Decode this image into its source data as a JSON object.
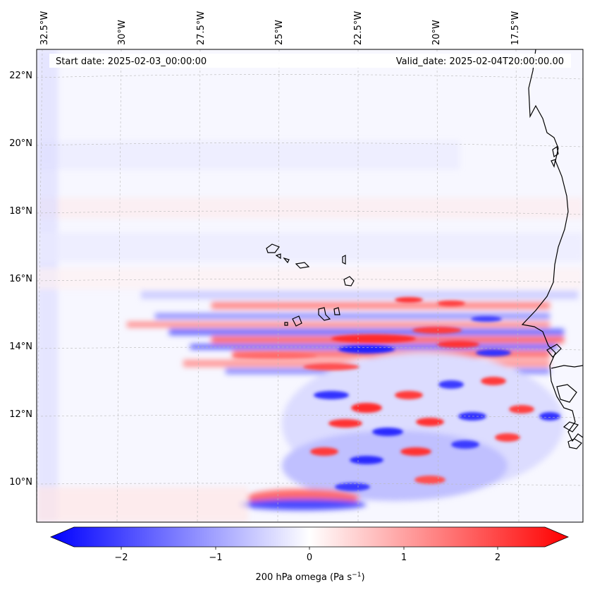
{
  "header": {
    "start_date": "Start date: 2025-02-03_00:00:00",
    "valid_date": "Valid_date: 2025-02-04T20:00:00.00"
  },
  "longitude_labels": [
    "32.5°W",
    "30°W",
    "27.5°W",
    "25°W",
    "22.5°W",
    "20°W",
    "17.5°W"
  ],
  "latitude_labels": [
    "22°N",
    "20°N",
    "18°N",
    "16°N",
    "14°N",
    "12°N",
    "10°N"
  ],
  "colorbar": {
    "tick_labels": [
      "−2",
      "−1",
      "0",
      "1",
      "2"
    ],
    "tick_values": [
      -2,
      -1,
      0,
      1,
      2
    ],
    "range": [
      -2.5,
      2.5
    ],
    "label": "200 hPa omega (Pa s",
    "label_sup": "−1",
    "label_close": ")",
    "colors": {
      "negative": "#0000ff",
      "zero": "#ffffff",
      "positive": "#ff0000"
    }
  },
  "map": {
    "coastline_color": "#000000",
    "gridline_color": "#b0b0b0",
    "background_tint": "#f6f6ff"
  }
}
